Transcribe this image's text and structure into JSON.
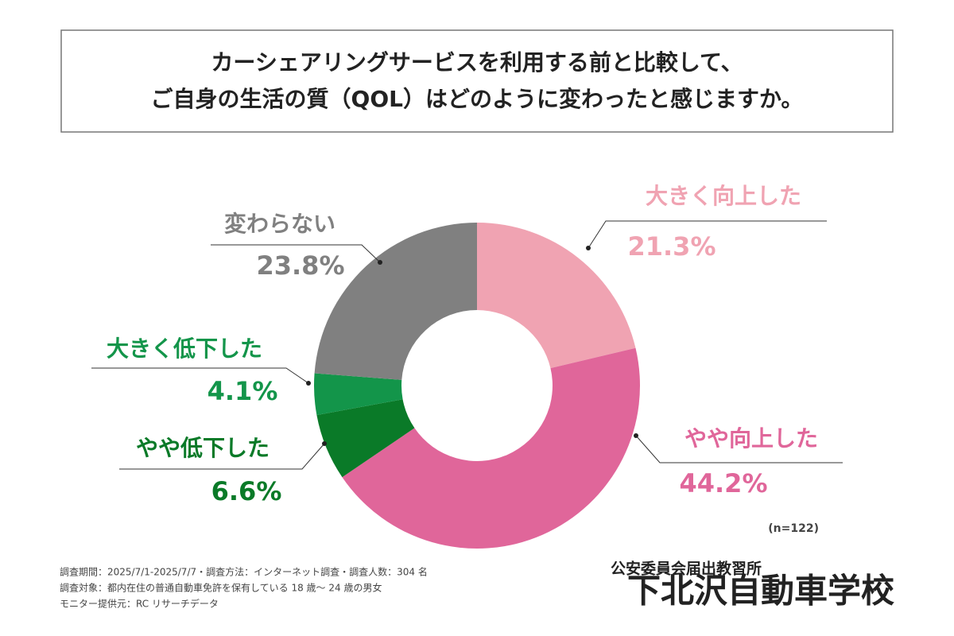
{
  "chart_data": {
    "type": "pie",
    "donut": true,
    "title": [
      "カーシェアリングサービスを利用する前と比較して、",
      "ご自身の生活の質（QOL）はどのように変わったと感じますか。"
    ],
    "categories": [
      "大きく向上した",
      "やや向上した",
      "やや低下した",
      "大きく低下した",
      "変わらない"
    ],
    "values": [
      21.3,
      44.2,
      6.6,
      4.1,
      23.8
    ],
    "value_labels": [
      "21.3%",
      "44.2%",
      "6.6%",
      "4.1%",
      "23.8%"
    ],
    "colors": [
      "#f0a3b2",
      "#e0669a",
      "#0a7a28",
      "#13954a",
      "#808080"
    ],
    "sample_note": "(n=122)"
  },
  "footer": {
    "notes": [
      "調査期間：2025/7/1-2025/7/7・調査方法：インターネット調査・調査人数：304 名",
      "調査対象：都内在住の普通自動車免許を保有している 18 歳～ 24 歳の男女",
      "モニター提供元：RC リサーチデータ"
    ],
    "logo_sub": "公安委員会届出教習所",
    "logo": "下北沢自動車学校"
  }
}
